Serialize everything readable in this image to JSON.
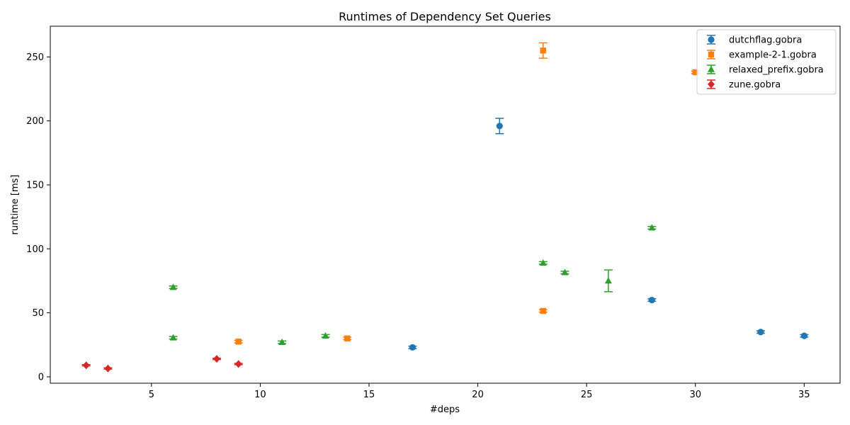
{
  "chart_data": {
    "type": "scatter",
    "title": "Runtimes of Dependency Set Queries",
    "xlabel": "#deps",
    "ylabel": "runtime [ms]",
    "xlim": [
      0.35,
      36.65
    ],
    "ylim": [
      -5,
      274
    ],
    "xticks": [
      5,
      10,
      15,
      20,
      25,
      30,
      35
    ],
    "yticks": [
      0,
      50,
      100,
      150,
      200,
      250
    ],
    "legend_position": "top-right",
    "grid": false,
    "series": [
      {
        "name": "dutchflag.gobra",
        "color": "#1f77b4",
        "marker": "circle",
        "points": [
          {
            "x": 17,
            "y": 23,
            "err": 1
          },
          {
            "x": 21,
            "y": 196,
            "err": 6
          },
          {
            "x": 28,
            "y": 60,
            "err": 1
          },
          {
            "x": 33,
            "y": 35,
            "err": 1
          },
          {
            "x": 35,
            "y": 32,
            "err": 1
          }
        ]
      },
      {
        "name": "example-2-1.gobra",
        "color": "#ff7f0e",
        "marker": "square",
        "points": [
          {
            "x": 9,
            "y": 27.5,
            "err": 1
          },
          {
            "x": 14,
            "y": 30,
            "err": 1
          },
          {
            "x": 23,
            "y": 51.5,
            "err": 1
          },
          {
            "x": 23,
            "y": 255,
            "err": 6
          },
          {
            "x": 30,
            "y": 238,
            "err": 1
          }
        ]
      },
      {
        "name": "relaxed_prefix.gobra",
        "color": "#2ca02c",
        "marker": "triangle",
        "points": [
          {
            "x": 6,
            "y": 30.5,
            "err": 1
          },
          {
            "x": 6,
            "y": 70,
            "err": 1
          },
          {
            "x": 11,
            "y": 27,
            "err": 1
          },
          {
            "x": 13,
            "y": 32,
            "err": 1
          },
          {
            "x": 23,
            "y": 89,
            "err": 1
          },
          {
            "x": 24,
            "y": 81.5,
            "err": 1
          },
          {
            "x": 26,
            "y": 75,
            "err": 8.5
          },
          {
            "x": 28,
            "y": 116.5,
            "err": 1
          }
        ]
      },
      {
        "name": "zune.gobra",
        "color": "#d62728",
        "marker": "diamond",
        "points": [
          {
            "x": 2,
            "y": 9,
            "err": 0.5
          },
          {
            "x": 3,
            "y": 6.5,
            "err": 0.5
          },
          {
            "x": 8,
            "y": 14,
            "err": 0.5
          },
          {
            "x": 9,
            "y": 10,
            "err": 0.5
          }
        ]
      }
    ]
  }
}
